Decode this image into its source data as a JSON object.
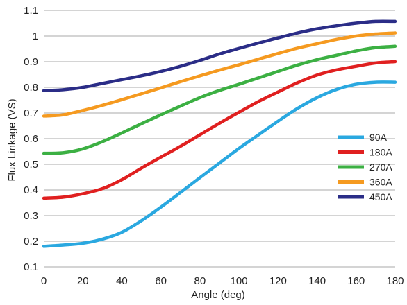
{
  "chart_data": {
    "type": "line",
    "title": "",
    "xlabel": "Angle (deg)",
    "ylabel": "Flux Linkage (VS)",
    "xlim": [
      0,
      180
    ],
    "ylim": [
      0.1,
      1.1
    ],
    "xticks": [
      0,
      20,
      40,
      60,
      80,
      100,
      120,
      140,
      160,
      180
    ],
    "yticks": [
      0.1,
      0.2,
      0.3,
      0.4,
      0.5,
      0.6,
      0.7,
      0.8,
      0.9,
      1.0,
      1.1
    ],
    "ytick_labels": [
      "0.1",
      "0.2",
      "0.3",
      "0.4",
      "0.5",
      "0.6",
      "0.7",
      "0.8",
      "0.9",
      "1",
      "1.1"
    ],
    "grid": "horizontal",
    "legend_position": "right",
    "x": [
      0,
      10,
      20,
      30,
      40,
      50,
      60,
      70,
      80,
      90,
      100,
      110,
      120,
      130,
      140,
      150,
      160,
      170,
      180
    ],
    "series": [
      {
        "name": "90A",
        "color": "#2aa8e0",
        "values": [
          0.18,
          0.185,
          0.192,
          0.208,
          0.235,
          0.28,
          0.333,
          0.39,
          0.448,
          0.505,
          0.562,
          0.615,
          0.668,
          0.718,
          0.76,
          0.792,
          0.812,
          0.82,
          0.82
        ]
      },
      {
        "name": "180A",
        "color": "#e02020",
        "values": [
          0.368,
          0.372,
          0.385,
          0.405,
          0.44,
          0.485,
          0.528,
          0.57,
          0.615,
          0.66,
          0.703,
          0.745,
          0.782,
          0.818,
          0.848,
          0.868,
          0.882,
          0.895,
          0.9
        ]
      },
      {
        "name": "270A",
        "color": "#3cb043",
        "values": [
          0.543,
          0.545,
          0.56,
          0.588,
          0.622,
          0.658,
          0.693,
          0.727,
          0.76,
          0.788,
          0.812,
          0.837,
          0.862,
          0.887,
          0.908,
          0.925,
          0.942,
          0.955,
          0.96
        ]
      },
      {
        "name": "360A",
        "color": "#f59a20",
        "values": [
          0.688,
          0.693,
          0.71,
          0.73,
          0.752,
          0.775,
          0.798,
          0.822,
          0.845,
          0.867,
          0.888,
          0.91,
          0.932,
          0.953,
          0.97,
          0.987,
          1.0,
          1.008,
          1.012
        ]
      },
      {
        "name": "450A",
        "color": "#2b2d87",
        "values": [
          0.787,
          0.791,
          0.8,
          0.815,
          0.83,
          0.845,
          0.862,
          0.882,
          0.905,
          0.93,
          0.952,
          0.973,
          0.993,
          1.012,
          1.028,
          1.04,
          1.05,
          1.057,
          1.057
        ]
      }
    ]
  }
}
